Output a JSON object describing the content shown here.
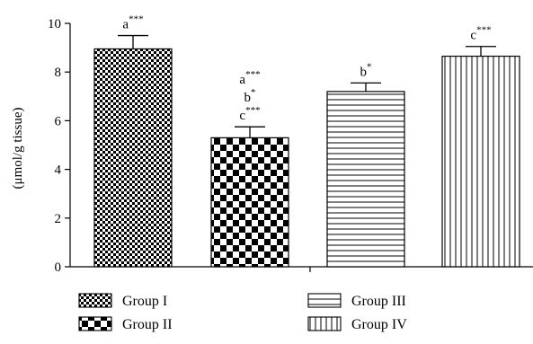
{
  "chart_data": {
    "type": "bar",
    "categories": [
      "Group I",
      "Group II",
      "Group III",
      "Group IV"
    ],
    "values": [
      8.95,
      5.3,
      7.2,
      8.65
    ],
    "errors": [
      0.55,
      0.45,
      0.35,
      0.4
    ],
    "ylabel": "(μmol/g tissue)",
    "ylim": [
      0,
      10
    ],
    "yticks": [
      "0",
      "2",
      "4",
      "6",
      "8",
      "10"
    ],
    "grid": false,
    "legend_position": "bottom",
    "annotations": [
      [
        {
          "letter": "a",
          "stars": "***"
        }
      ],
      [
        {
          "letter": "a",
          "stars": "***"
        },
        {
          "letter": "b",
          "stars": "*"
        },
        {
          "letter": "c",
          "stars": "***"
        }
      ],
      [
        {
          "letter": "b",
          "stars": "*"
        }
      ],
      [
        {
          "letter": "c",
          "stars": "***"
        }
      ]
    ],
    "patterns": [
      "fine-checker",
      "bold-checker",
      "horizontal-lines",
      "vertical-lines"
    ]
  }
}
